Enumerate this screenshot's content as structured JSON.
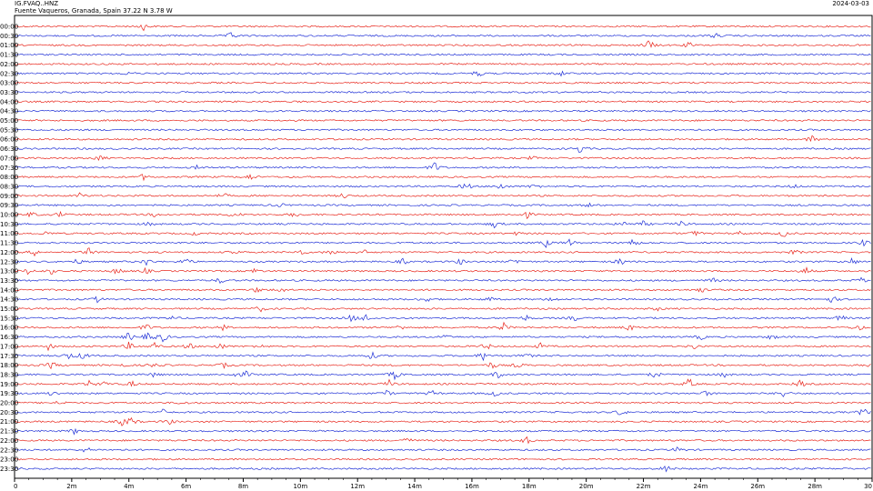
{
  "header": {
    "station": "IG.FVAQ..HNZ",
    "location": "Fuente Vaqueros, Granada, Spain  37.22 N 3.78 W",
    "date": "2024-03-03"
  },
  "chart_data": {
    "type": "line",
    "title": "",
    "xlabel": "",
    "ylabel": "",
    "x_unit": "minutes",
    "xlim": [
      0,
      30
    ],
    "x_ticks": [
      "0",
      "2m",
      "4m",
      "6m",
      "8m",
      "10m",
      "12m",
      "14m",
      "16m",
      "18m",
      "20m",
      "22m",
      "24m",
      "26m",
      "28m",
      "30"
    ],
    "colors": {
      "odd": "#e8261c",
      "even": "#1e2fd6",
      "frame": "#000000"
    },
    "rows": [
      {
        "time": "00:00",
        "events": [
          [
            4.5,
            2
          ]
        ]
      },
      {
        "time": "00:30",
        "events": [
          [
            7.6,
            2
          ],
          [
            24.5,
            1.5
          ]
        ]
      },
      {
        "time": "01:00",
        "events": [
          [
            22.2,
            3
          ],
          [
            23.6,
            1.5
          ]
        ]
      },
      {
        "time": "01:30",
        "events": []
      },
      {
        "time": "02:00",
        "events": []
      },
      {
        "time": "02:30",
        "events": [
          [
            4.0,
            1
          ],
          [
            16.2,
            2
          ],
          [
            19.1,
            1.5
          ]
        ]
      },
      {
        "time": "03:00",
        "events": []
      },
      {
        "time": "03:30",
        "events": []
      },
      {
        "time": "04:00",
        "events": []
      },
      {
        "time": "04:30",
        "events": []
      },
      {
        "time": "05:00",
        "events": []
      },
      {
        "time": "05:30",
        "events": []
      },
      {
        "time": "06:00",
        "events": [
          [
            27.9,
            2
          ]
        ]
      },
      {
        "time": "06:30",
        "events": [
          [
            19.8,
            2.5
          ]
        ]
      },
      {
        "time": "07:00",
        "events": [
          [
            3.0,
            1.5
          ],
          [
            18.1,
            1
          ]
        ]
      },
      {
        "time": "07:30",
        "events": [
          [
            6.4,
            1
          ],
          [
            14.7,
            3
          ]
        ]
      },
      {
        "time": "08:00",
        "events": [
          [
            4.5,
            1.5
          ],
          [
            8.2,
            2
          ]
        ]
      },
      {
        "time": "08:30",
        "events": [
          [
            15.8,
            2.5
          ],
          [
            17.0,
            2
          ],
          [
            18.2,
            1.5
          ],
          [
            27.3,
            1
          ]
        ]
      },
      {
        "time": "09:00",
        "events": [
          [
            2.3,
            1.5
          ],
          [
            7.3,
            1.5
          ],
          [
            11.5,
            1.5
          ]
        ]
      },
      {
        "time": "09:30",
        "events": [
          [
            9.3,
            1
          ],
          [
            20.1,
            1
          ]
        ]
      },
      {
        "time": "10:00",
        "events": [
          [
            0.6,
            1.5
          ],
          [
            1.6,
            1.5
          ],
          [
            4.9,
            1
          ],
          [
            7.7,
            2
          ],
          [
            9.8,
            1.5
          ],
          [
            17.9,
            2
          ]
        ]
      },
      {
        "time": "10:30",
        "events": [
          [
            4.7,
            1
          ],
          [
            16.8,
            2
          ],
          [
            21.3,
            1.5
          ],
          [
            22.0,
            1.5
          ],
          [
            23.3,
            1.5
          ]
        ]
      },
      {
        "time": "11:00",
        "events": [
          [
            1.1,
            1
          ],
          [
            6.3,
            1
          ],
          [
            17.6,
            1
          ],
          [
            23.8,
            1.5
          ],
          [
            25.4,
            1
          ],
          [
            26.9,
            2
          ]
        ]
      },
      {
        "time": "11:30",
        "events": [
          [
            18.6,
            2
          ],
          [
            19.4,
            2
          ],
          [
            21.6,
            2
          ],
          [
            29.7,
            1.5
          ]
        ]
      },
      {
        "time": "12:00",
        "events": [
          [
            0.7,
            1.5
          ],
          [
            2.6,
            2
          ],
          [
            7.7,
            1.5
          ],
          [
            10.0,
            1.5
          ],
          [
            11.1,
            2
          ],
          [
            12.2,
            1.5
          ],
          [
            27.3,
            1.5
          ]
        ]
      },
      {
        "time": "12:30",
        "events": [
          [
            2.2,
            1.5
          ],
          [
            4.6,
            2
          ],
          [
            6.0,
            2.5
          ],
          [
            13.6,
            1.5
          ],
          [
            15.6,
            1.5
          ],
          [
            17.5,
            1.5
          ],
          [
            21.2,
            2
          ],
          [
            29.3,
            2
          ]
        ]
      },
      {
        "time": "13:00",
        "events": [
          [
            0.5,
            2
          ],
          [
            1.3,
            1.5
          ],
          [
            3.6,
            2
          ],
          [
            4.6,
            1.5
          ],
          [
            8.4,
            1.5
          ],
          [
            27.7,
            2
          ]
        ]
      },
      {
        "time": "13:30",
        "events": [
          [
            7.2,
            1.5
          ],
          [
            24.4,
            1.5
          ],
          [
            29.6,
            1.5
          ]
        ]
      },
      {
        "time": "14:00",
        "events": [
          [
            8.5,
            1.5
          ],
          [
            9.3,
            1.5
          ],
          [
            24.0,
            1.5
          ]
        ]
      },
      {
        "time": "14:30",
        "events": [
          [
            2.9,
            1.5
          ],
          [
            14.4,
            1.5
          ],
          [
            16.6,
            1.5
          ],
          [
            18.8,
            1.5
          ],
          [
            28.6,
            2
          ]
        ]
      },
      {
        "time": "15:00",
        "events": [
          [
            8.6,
            1.5
          ],
          [
            22.5,
            1
          ]
        ]
      },
      {
        "time": "15:30",
        "events": [
          [
            5.5,
            1
          ],
          [
            11.8,
            2
          ],
          [
            12.3,
            2
          ],
          [
            17.9,
            1.5
          ],
          [
            19.6,
            1.5
          ],
          [
            28.9,
            2
          ]
        ]
      },
      {
        "time": "16:00",
        "events": [
          [
            4.6,
            2
          ],
          [
            7.3,
            1.5
          ],
          [
            13.5,
            1.5
          ],
          [
            17.1,
            2.5
          ],
          [
            21.5,
            2
          ],
          [
            29.5,
            2
          ]
        ]
      },
      {
        "time": "16:30",
        "events": [
          [
            4.0,
            2.5
          ],
          [
            4.7,
            3
          ],
          [
            5.2,
            2.5
          ],
          [
            15.0,
            1.5
          ],
          [
            24.0,
            1.5
          ],
          [
            26.5,
            1.5
          ]
        ]
      },
      {
        "time": "17:00",
        "events": [
          [
            1.2,
            2
          ],
          [
            4.0,
            2
          ],
          [
            4.9,
            2
          ],
          [
            6.1,
            2
          ],
          [
            7.2,
            2
          ],
          [
            8.6,
            1
          ],
          [
            16.5,
            2
          ],
          [
            18.4,
            1.5
          ],
          [
            23.8,
            1.5
          ]
        ]
      },
      {
        "time": "17:30",
        "events": [
          [
            1.9,
            2
          ],
          [
            2.4,
            2
          ],
          [
            12.5,
            2
          ],
          [
            16.4,
            2.5
          ],
          [
            17.9,
            1.5
          ]
        ]
      },
      {
        "time": "18:00",
        "events": [
          [
            1.3,
            2
          ],
          [
            3.7,
            1.5
          ],
          [
            4.9,
            1.5
          ],
          [
            7.3,
            1.5
          ],
          [
            16.7,
            2
          ],
          [
            17.6,
            1.5
          ],
          [
            30.0,
            2
          ]
        ]
      },
      {
        "time": "18:30",
        "events": [
          [
            4.9,
            1.5
          ],
          [
            7.7,
            1.5
          ],
          [
            8.1,
            1.5
          ],
          [
            13.3,
            2.5
          ],
          [
            16.9,
            2
          ],
          [
            22.4,
            2
          ],
          [
            24.8,
            1.5
          ]
        ]
      },
      {
        "time": "19:00",
        "events": [
          [
            2.6,
            1.5
          ],
          [
            3.1,
            1.5
          ],
          [
            4.1,
            1.5
          ],
          [
            13.1,
            2
          ],
          [
            23.6,
            3
          ],
          [
            27.5,
            2
          ]
        ]
      },
      {
        "time": "19:30",
        "events": [
          [
            1.3,
            1.5
          ],
          [
            13.0,
            1.5
          ],
          [
            14.6,
            1.5
          ],
          [
            16.8,
            1.5
          ],
          [
            24.2,
            1.5
          ],
          [
            26.9,
            2
          ]
        ]
      },
      {
        "time": "20:00",
        "events": [
          [
            1.6,
            1.5
          ],
          [
            5.9,
            1
          ]
        ]
      },
      {
        "time": "20:30",
        "events": [
          [
            5.2,
            1.5
          ],
          [
            21.2,
            2
          ],
          [
            29.7,
            2.5
          ]
        ]
      },
      {
        "time": "21:00",
        "events": [
          [
            3.8,
            2.5
          ],
          [
            4.1,
            2
          ],
          [
            5.4,
            1.5
          ]
        ]
      },
      {
        "time": "21:30",
        "events": [
          [
            2.1,
            1.5
          ]
        ]
      },
      {
        "time": "22:00",
        "events": [
          [
            13.7,
            2
          ],
          [
            17.9,
            2
          ]
        ]
      },
      {
        "time": "22:30",
        "events": [
          [
            2.5,
            1.5
          ],
          [
            23.2,
            1.5
          ]
        ]
      },
      {
        "time": "23:00",
        "events": []
      },
      {
        "time": "23:30",
        "events": [
          [
            22.8,
            2
          ]
        ]
      }
    ]
  }
}
